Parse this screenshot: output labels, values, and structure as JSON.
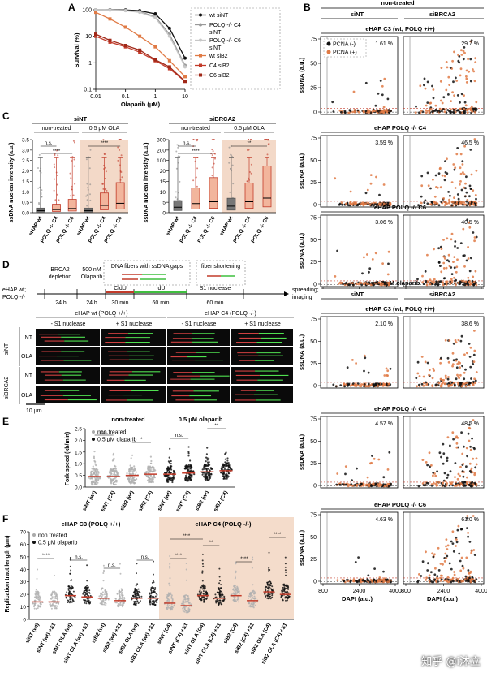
{
  "colors": {
    "black": "#111111",
    "grey": "#9a9a9a",
    "lightgrey": "#c8c8c8",
    "orange": "#e07a45",
    "red": "#c23b2a",
    "salmon": "#f3d9c8",
    "green": "#3fbf3f"
  },
  "panelA": {
    "letter": "A",
    "ylabel": "Survival (%)",
    "xlabel": "Olaparib (μM)",
    "xticks": [
      "0.01",
      "0.1",
      "1",
      "10"
    ],
    "yticks": [
      "0.1",
      "1",
      "10",
      "100"
    ],
    "legend": [
      "wt siNT",
      "POLQ -/- C4 siNT",
      "POLQ -/- C6 siNT",
      "wt siB2",
      "C4 siB2",
      "C6 siB2"
    ],
    "series": [
      {
        "name": "wt siNT",
        "color": "#111111",
        "x": [
          0.01,
          0.03,
          0.1,
          0.3,
          1,
          3,
          10
        ],
        "y": [
          100,
          100,
          98,
          92,
          70,
          20,
          1.5
        ]
      },
      {
        "name": "POLQ -/- C4 siNT",
        "color": "#9a9a9a",
        "x": [
          0.01,
          0.03,
          0.1,
          0.3,
          1,
          3,
          10
        ],
        "y": [
          100,
          98,
          94,
          85,
          55,
          12,
          0.8
        ]
      },
      {
        "name": "POLQ -/- C6 siNT",
        "color": "#c8c8c8",
        "x": [
          0.01,
          0.03,
          0.1,
          0.3,
          1,
          3,
          10
        ],
        "y": [
          100,
          97,
          92,
          80,
          50,
          10,
          0.7
        ]
      },
      {
        "name": "wt siB2",
        "color": "#e07a45",
        "x": [
          0.01,
          0.03,
          0.1,
          0.3,
          1,
          3,
          10
        ],
        "y": [
          80,
          45,
          22,
          10,
          4,
          1.2,
          0.3
        ]
      },
      {
        "name": "C4 siB2",
        "color": "#c23b2a",
        "x": [
          0.01,
          0.03,
          0.1,
          0.3,
          1,
          3,
          10
        ],
        "y": [
          10,
          6,
          4,
          2.5,
          1.2,
          0.6,
          0.2
        ]
      },
      {
        "name": "C6 siB2",
        "color": "#a02818",
        "x": [
          0.01,
          0.03,
          0.1,
          0.3,
          1,
          3,
          10
        ],
        "y": [
          12,
          7,
          4.5,
          3,
          1.3,
          0.7,
          0.2
        ]
      }
    ]
  },
  "panelB": {
    "letter": "B",
    "top_label": "non-treated",
    "bottom_label": "0.5 μM olaparib",
    "col_siNT": "siNT",
    "col_siBRCA2": "siBRCA2",
    "ylabel": "ssDNA (a.u.)",
    "xlabel": "DAPI (a.u.)",
    "yticks": [
      "0",
      "25",
      "50",
      "75"
    ],
    "xticks": [
      "800",
      "2400",
      "4000"
    ],
    "legend_neg": "PCNA (-)",
    "legend_pos": "PCNA (+)",
    "rows": [
      {
        "title": "eHAP C3 (wt, POLQ +/+)",
        "p1": "1.61 %",
        "p2": "29.7 %"
      },
      {
        "title": "eHAP POLQ -/- C4",
        "p1": "3.59 %",
        "p2": "46.5 %"
      },
      {
        "title": "eHAP POLQ -/- C6",
        "p1": "3.06 %",
        "p2": "40.5 %"
      },
      {
        "title": "eHAP C3 (wt, POLQ +/+)",
        "p1": "2.10 %",
        "p2": "38.6 %"
      },
      {
        "title": "eHAP POLQ -/- C4",
        "p1": "4.57 %",
        "p2": "48.5 %"
      },
      {
        "title": "eHAP POLQ -/- C6",
        "p1": "4.63 %",
        "p2": "61.0 %"
      }
    ]
  },
  "panelC": {
    "letter": "C",
    "left_title": "siNT",
    "right_title": "siBRCA2",
    "nontreated": "non-treated",
    "olaparib": "0.5 μM OLA",
    "left_ylabel": "ssDNA nuclear intensity (a.u.)",
    "right_ylabel": "ssDNA nuclear intensity (a.u.)",
    "left_yticks": [
      "0.0",
      "0.5",
      "1.0",
      "1.5",
      "2.0",
      "2.5",
      "3.0",
      "3.5"
    ],
    "right_yticks": [
      "0",
      "5",
      "10",
      "15",
      "20",
      "100",
      "200",
      "300"
    ],
    "categories": [
      "eHAP wt",
      "POLQ -/- C4",
      "POLQ -/- C6",
      "eHAP wt",
      "POLQ -/- C4",
      "POLQ -/- C6"
    ],
    "left_medians": [
      0.1,
      0.15,
      0.2,
      0.1,
      0.35,
      0.45
    ],
    "right_medians": [
      1.5,
      2.5,
      3,
      1.8,
      3,
      4
    ],
    "sig_ns": "n.s.",
    "sig_4": "****",
    "sig_2": "**"
  },
  "panelD": {
    "letter": "D",
    "left_label": "eHAP wt;\nPOLQ -/-",
    "brca2": "BRCA2 depletion",
    "olaparib": "500 nM Olaparib",
    "t1": "24 h",
    "t2": "24 h",
    "t3": "30 min",
    "t4": "60 min",
    "t5": "60 min",
    "cldu": "CldU",
    "idu": "IdU",
    "s1": "S1 nuclease",
    "box1": "DNA fibers with ssDNA gaps",
    "box2": "fiber shortening",
    "end": "spreading; imaging",
    "head_wt": "eHAP wt (POLQ +/+)",
    "head_c4": "eHAP C4 (POLQ -/-)",
    "minus": "- S1 nuclease",
    "plus": "+ S1 nuclease",
    "row_labels": [
      "NT",
      "OLA",
      "NT",
      "OLA"
    ],
    "side_top": "siNT",
    "side_bottom": "siBRCA2",
    "scale": "10 μm"
  },
  "panelE": {
    "letter": "E",
    "nontreated": "non-treated",
    "olaparib": "0.5 μM olaparib",
    "ylabel": "Fork speed (kb/min)",
    "yticks": [
      "0.0",
      "0.5",
      "1.0",
      "1.5",
      "2.0",
      "2.5"
    ],
    "legend_nt": "non treated",
    "legend_ola": "0.5 μM olaparib",
    "categories": [
      "siNT (wt)",
      "siNT (C4)",
      "siB2 (wt)",
      "siB2 (C4)",
      "siNT (wt)",
      "siNT (C4)",
      "siB2 (wt)",
      "siB2 (C4)"
    ],
    "medians": [
      0.45,
      0.45,
      0.5,
      0.55,
      0.55,
      0.6,
      0.65,
      0.7
    ],
    "sig": [
      "n.s.",
      "*",
      "n.s.",
      "**"
    ]
  },
  "panelF": {
    "letter": "F",
    "left_title": "eHAP C3 (POLQ +/+)",
    "right_title": "eHAP C4 (POLQ -/-)",
    "ylabel": "Replication tract length (μm)",
    "yticks": [
      "0",
      "10",
      "20",
      "30",
      "40",
      "50",
      "60",
      "70"
    ],
    "legend_nt": "non treated",
    "legend_ola": "0.5 μM olaparib",
    "categories": [
      "siNT (wt)",
      "siNT (wt) +S1",
      "siNT OLA (wt)",
      "siNT OLA (wt) +S1",
      "siB2 (wt)",
      "siB2 (wt) +S1",
      "siB2 OLA (wt)",
      "siB2 OLA (wt) +S1",
      "siNT (C4)",
      "siNT (C4) +S1",
      "siNT OLA (C4)",
      "siNT OLA (C4) +S1",
      "siB2 (C4)",
      "siB2 (C4) +S1",
      "siB2 OLA (C4)",
      "siB2 OLA (C4) +S1"
    ],
    "medians": [
      14,
      14,
      19,
      18,
      17,
      15,
      17,
      17,
      13,
      11,
      19,
      17,
      19,
      15,
      22,
      20
    ],
    "sig_left": [
      "****",
      "n.s.",
      "n.s.",
      "n.s."
    ],
    "sig_right": [
      "****",
      "****",
      "**",
      "****",
      "****"
    ]
  },
  "watermark": "知乎 @i沐立"
}
